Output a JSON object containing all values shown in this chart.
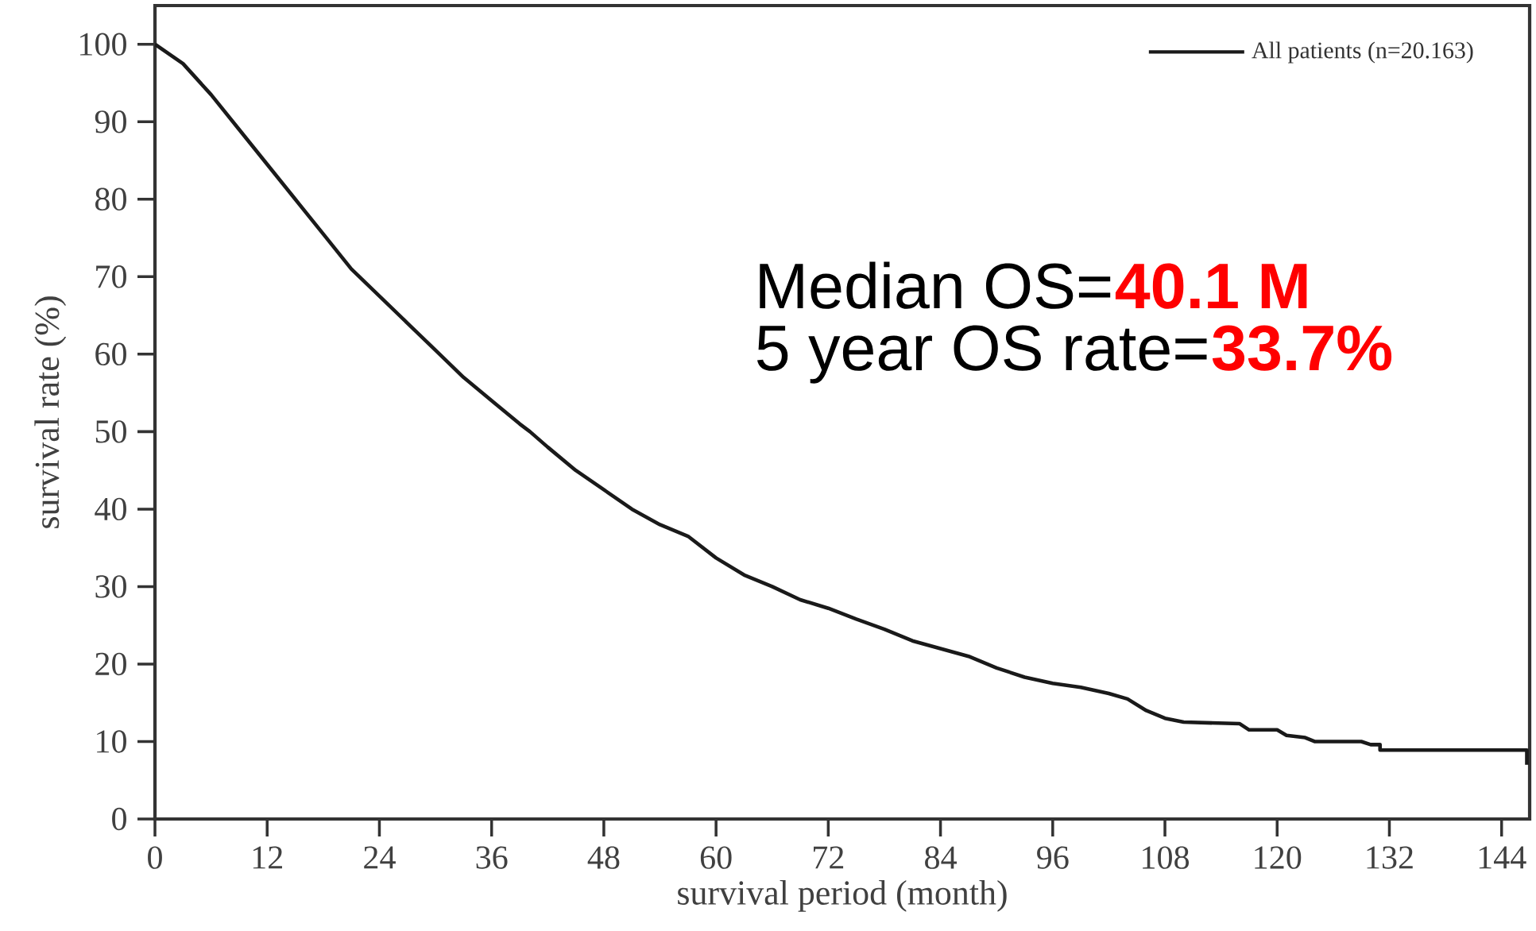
{
  "chart_data": {
    "type": "line",
    "xlabel": "survival period (month)",
    "ylabel": "survival rate (%)",
    "x": [
      0,
      3,
      6,
      9,
      12,
      15,
      18,
      21,
      24,
      27,
      30,
      33,
      36,
      39,
      40.1,
      42,
      45,
      48,
      51,
      54,
      57,
      60,
      63,
      66,
      69,
      72,
      75,
      78,
      81,
      84,
      87,
      90,
      93,
      96,
      99,
      102,
      104,
      106,
      108,
      110,
      116,
      117,
      120,
      121,
      123,
      124,
      129,
      130,
      131,
      131,
      146.7,
      146.7
    ],
    "series": [
      {
        "name": "All patients (n=20.163)",
        "color": "#1a1a1a",
        "values": [
          100,
          97.5,
          93.5,
          89,
          84.5,
          80,
          75.5,
          71,
          67.5,
          64,
          60.5,
          57,
          54,
          51,
          50,
          48,
          45,
          42.5,
          40,
          38,
          36.5,
          33.7,
          31.5,
          30,
          28.3,
          27.2,
          25.8,
          24.5,
          23,
          22,
          21,
          19.5,
          18.3,
          17.5,
          17,
          16.2,
          15.5,
          14,
          13,
          12.5,
          12.3,
          11.5,
          11.5,
          10.8,
          10.5,
          10,
          10,
          9.6,
          9.6,
          8.9,
          8.9,
          7
        ]
      }
    ],
    "xlim": [
      0,
      147
    ],
    "ylim": [
      0,
      105
    ],
    "xticks": [
      0,
      12,
      24,
      36,
      48,
      60,
      72,
      84,
      96,
      108,
      120,
      132,
      144
    ],
    "yticks": [
      0,
      10,
      20,
      30,
      40,
      50,
      60,
      70,
      80,
      90,
      100
    ],
    "legend": "top right",
    "marker": "none",
    "line_style": "solid",
    "grid": false,
    "annotations": [
      "Median OS=",
      "40.1 M",
      "5 year OS rate=",
      "33.7%"
    ]
  }
}
